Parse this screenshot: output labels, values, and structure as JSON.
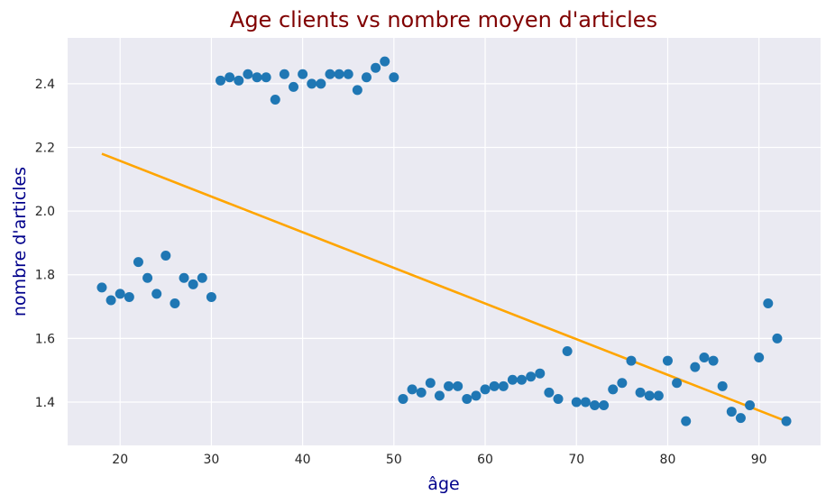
{
  "chart_data": {
    "type": "scatter",
    "title": "Age clients vs nombre moyen d'articles",
    "xlabel": "âge",
    "ylabel": "nombre d'articles",
    "xlim": [
      14.25,
      96.75
    ],
    "ylim": [
      1.264,
      2.544
    ],
    "xticks": [
      20,
      30,
      40,
      50,
      60,
      70,
      80,
      90
    ],
    "yticks": [
      1.4,
      1.6,
      1.8,
      2.0,
      2.2,
      2.4
    ],
    "ytick_labels": [
      "1.4",
      "1.6",
      "1.8",
      "2.0",
      "2.2",
      "2.4"
    ],
    "grid": true,
    "series": [
      {
        "kind": "scatter",
        "x": [
          18,
          19,
          20,
          21,
          22,
          23,
          24,
          25,
          26,
          27,
          28,
          29,
          30,
          31,
          32,
          33,
          34,
          35,
          36,
          37,
          38,
          39,
          40,
          41,
          42,
          43,
          44,
          45,
          46,
          47,
          48,
          49,
          50,
          51,
          52,
          53,
          54,
          55,
          56,
          57,
          58,
          59,
          60,
          61,
          62,
          63,
          64,
          65,
          66,
          67,
          68,
          69,
          70,
          71,
          72,
          73,
          74,
          75,
          76,
          77,
          78,
          79,
          80,
          81,
          82,
          83,
          84,
          85,
          86,
          87,
          88,
          89,
          90,
          91,
          92,
          93
        ],
        "y": [
          1.76,
          1.72,
          1.74,
          1.73,
          1.84,
          1.79,
          1.74,
          1.86,
          1.71,
          1.79,
          1.77,
          1.79,
          1.73,
          2.41,
          2.42,
          2.41,
          2.43,
          2.42,
          2.42,
          2.35,
          2.43,
          2.39,
          2.43,
          2.4,
          2.4,
          2.43,
          2.43,
          2.43,
          2.38,
          2.42,
          2.45,
          2.47,
          2.42,
          1.41,
          1.44,
          1.43,
          1.46,
          1.42,
          1.45,
          1.45,
          1.41,
          1.42,
          1.44,
          1.45,
          1.45,
          1.47,
          1.47,
          1.48,
          1.49,
          1.43,
          1.41,
          1.56,
          1.4,
          1.4,
          1.39,
          1.39,
          1.44,
          1.46,
          1.53,
          1.43,
          1.42,
          1.42,
          1.53,
          1.46,
          1.34,
          1.51,
          1.54,
          1.53,
          1.45,
          1.37,
          1.35,
          1.39,
          1.54,
          1.71,
          1.6,
          1.34
        ]
      },
      {
        "kind": "line",
        "x": [
          18,
          93
        ],
        "y": [
          2.18,
          1.34
        ]
      }
    ],
    "colors": {
      "points": "#1f77b4",
      "line": "#ffa500",
      "title": "#800000",
      "axis_labels": "#00008b",
      "background": "#eaeaf2",
      "grid": "#ffffff"
    }
  }
}
